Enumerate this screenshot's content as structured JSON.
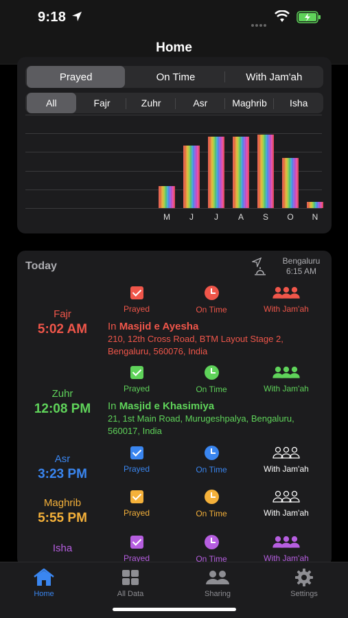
{
  "status": {
    "time": "9:18"
  },
  "nav": {
    "title": "Home"
  },
  "filters": {
    "metric_tabs": [
      "Prayed",
      "On Time",
      "With Jam'ah"
    ],
    "prayer_tabs": [
      "All",
      "Fajr",
      "Zuhr",
      "Asr",
      "Maghrib",
      "Isha"
    ]
  },
  "chart_data": {
    "type": "bar",
    "categories": [
      "M",
      "J",
      "J",
      "A",
      "S",
      "O",
      "N"
    ],
    "values": [
      7,
      20,
      23,
      23,
      23.5,
      16,
      2
    ],
    "ylim": [
      0,
      30
    ],
    "grid": true
  },
  "today": {
    "label": "Today",
    "city": "Bengaluru",
    "sunrise": "6:15 AM"
  },
  "labels": {
    "prayed": "Prayed",
    "on_time": "On Time",
    "jamah": "With Jam'ah",
    "in": "In"
  },
  "prayers": [
    {
      "name": "Fajr",
      "time": "5:02 AM",
      "color": "#f0564a",
      "mosque": "Masjid e Ayesha",
      "address": "210, 12th Cross Road, BTM Layout Stage 2, Bengaluru, 560076, India"
    },
    {
      "name": "Zuhr",
      "time": "12:08 PM",
      "color": "#5fd35a",
      "mosque": "Masjid e Khasimiya",
      "address": "21, 1st Main Road, Murugeshpalya, Bengaluru, 560017, India"
    },
    {
      "name": "Asr",
      "time": "3:23 PM",
      "color": "#3a86f0"
    },
    {
      "name": "Maghrib",
      "time": "5:55 PM",
      "color": "#f5b13a"
    },
    {
      "name": "Isha",
      "time": "",
      "color": "#b65ee0"
    }
  ],
  "tabbar": [
    {
      "label": "Home",
      "icon": "home-icon"
    },
    {
      "label": "All Data",
      "icon": "grid-icon"
    },
    {
      "label": "Sharing",
      "icon": "people-icon"
    },
    {
      "label": "Settings",
      "icon": "gear-icon"
    }
  ]
}
